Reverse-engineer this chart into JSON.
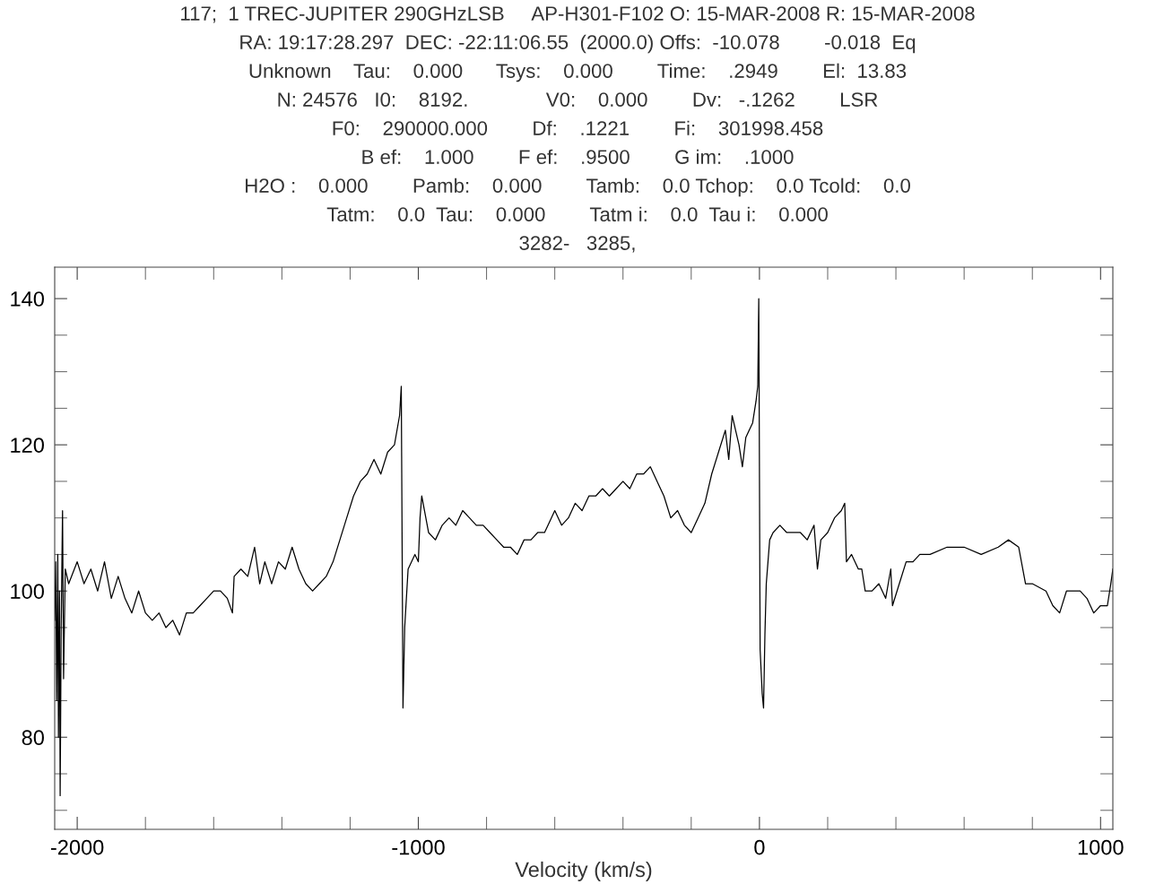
{
  "chart_data": {
    "type": "line",
    "annotations": [
      "117;  1 TREC-JUPITER 290GHzLSB     AP-H301-F102 O: 15-MAR-2008 R: 15-MAR-2008",
      "RA: 19:17:28.297  DEC: -22:11:06.55  (2000.0) Offs:  -10.078        -0.018  Eq",
      "Unknown    Tau:    0.000      Tsys:    0.000        Time:    .2949        El:  13.83",
      "N: 24576   I0:    8192.              V0:    0.000        Dv:   -.1262        LSR",
      "F0:    290000.000        Df:    .1221        Fi:    301998.458",
      "B ef:    1.000        F ef:    .9500        G im:    .1000",
      "H2O :    0.000        Pamb:    0.000        Tamb:    0.0 Tchop:    0.0 Tcold:    0.0",
      "Tatm:    0.0  Tau:    0.000        Tatm i:    0.0  Tau i:    0.000",
      "3282-   3285,"
    ],
    "xlabel": "Velocity (km/s)",
    "xlim": [
      -2066,
      1036
    ],
    "ylim": [
      67.4,
      144.3
    ],
    "xticks": [
      {
        "value": -2000,
        "label": "-2000"
      },
      {
        "value": -1800,
        "label": null
      },
      {
        "value": -1600,
        "label": null
      },
      {
        "value": -1400,
        "label": null
      },
      {
        "value": -1200,
        "label": null
      },
      {
        "value": -1000,
        "label": "-1000"
      },
      {
        "value": -800,
        "label": null
      },
      {
        "value": -600,
        "label": null
      },
      {
        "value": -400,
        "label": null
      },
      {
        "value": -200,
        "label": null
      },
      0,
      {
        "value": 200,
        "label": null
      },
      {
        "value": 400,
        "label": null
      },
      {
        "value": 600,
        "label": null
      },
      {
        "value": 800,
        "label": null
      },
      1000
    ],
    "yticks": [
      {
        "value": 70,
        "label": null
      },
      {
        "value": 75,
        "label": null
      },
      80,
      {
        "value": 85,
        "label": null
      },
      {
        "value": 90,
        "label": null
      },
      {
        "value": 95,
        "label": null
      },
      100,
      {
        "value": 105,
        "label": null
      },
      {
        "value": 110,
        "label": null
      },
      {
        "value": 115,
        "label": null
      },
      120,
      {
        "value": 125,
        "label": null
      },
      {
        "value": 130,
        "label": null
      },
      {
        "value": 135,
        "label": null
      },
      140
    ],
    "grid": false,
    "marker": "none",
    "line_style": "solid",
    "x": [
      -2066,
      -2063,
      -2060,
      -2057,
      -2055,
      -2052,
      -2050,
      -2047,
      -2043,
      -2040,
      -2035,
      -2025,
      -2000,
      -1980,
      -1960,
      -1940,
      -1920,
      -1900,
      -1880,
      -1860,
      -1840,
      -1820,
      -1800,
      -1780,
      -1760,
      -1740,
      -1720,
      -1700,
      -1680,
      -1660,
      -1640,
      -1620,
      -1600,
      -1580,
      -1560,
      -1545,
      -1540,
      -1520,
      -1500,
      -1480,
      -1465,
      -1450,
      -1430,
      -1410,
      -1390,
      -1370,
      -1350,
      -1330,
      -1310,
      -1290,
      -1270,
      -1250,
      -1230,
      -1210,
      -1190,
      -1170,
      -1150,
      -1130,
      -1110,
      -1090,
      -1070,
      -1055,
      -1050,
      -1045,
      -1040,
      -1030,
      -1010,
      -1000,
      -995,
      -990,
      -970,
      -950,
      -930,
      -910,
      -890,
      -870,
      -850,
      -830,
      -810,
      -790,
      -770,
      -750,
      -730,
      -710,
      -690,
      -670,
      -650,
      -630,
      -610,
      -600,
      -580,
      -560,
      -540,
      -520,
      -500,
      -480,
      -460,
      -440,
      -420,
      -400,
      -380,
      -360,
      -340,
      -320,
      -300,
      -280,
      -260,
      -240,
      -220,
      -200,
      -180,
      -160,
      -140,
      -120,
      -100,
      -90,
      -80,
      -70,
      -60,
      -50,
      -40,
      -30,
      -20,
      -10,
      -5,
      -2,
      2,
      8,
      12,
      16,
      20,
      25,
      30,
      40,
      60,
      80,
      100,
      120,
      140,
      160,
      170,
      180,
      200,
      220,
      240,
      250,
      255,
      270,
      290,
      300,
      310,
      330,
      350,
      370,
      385,
      390,
      410,
      430,
      450,
      470,
      500,
      550,
      600,
      650,
      700,
      730,
      760,
      780,
      800,
      840,
      860,
      880,
      900,
      920,
      940,
      960,
      980,
      1000,
      1020,
      1030,
      1036
    ],
    "series": [
      {
        "color": "#000000",
        "values": [
          96,
          104,
          85,
          105,
          80,
          100,
          72,
          95,
          111,
          88,
          103,
          101,
          104,
          101,
          103,
          100,
          104,
          99,
          102,
          99,
          97,
          100,
          97,
          96,
          97,
          95,
          96,
          94,
          97,
          97,
          98,
          99,
          100,
          100,
          99,
          97,
          102,
          103,
          102,
          106,
          101,
          104,
          101,
          104,
          103,
          106,
          103,
          101,
          100,
          101,
          102,
          104,
          107,
          110,
          113,
          115,
          116,
          118,
          116,
          119,
          120,
          124,
          128,
          84,
          95,
          103,
          105,
          104,
          110,
          113,
          108,
          107,
          109,
          110,
          109,
          111,
          110,
          109,
          109,
          108,
          107,
          106,
          106,
          105,
          107,
          107,
          108,
          108,
          110,
          111,
          109,
          110,
          112,
          111,
          113,
          113,
          114,
          113,
          114,
          115,
          114,
          116,
          116,
          117,
          115,
          113,
          110,
          111,
          109,
          108,
          110,
          112,
          116,
          119,
          122,
          118,
          124,
          122,
          120,
          117,
          121,
          122,
          123,
          126,
          128,
          140,
          92,
          86,
          84,
          94,
          101,
          104,
          107,
          108,
          109,
          108,
          108,
          108,
          107,
          109,
          103,
          107,
          108,
          110,
          111,
          112,
          104,
          105,
          103,
          103,
          100,
          100,
          101,
          99,
          103,
          98,
          101,
          104,
          104,
          105,
          105,
          106,
          106,
          105,
          106,
          107,
          106,
          101,
          101,
          100,
          98,
          97,
          100,
          100,
          100,
          99,
          97,
          98,
          98,
          101,
          103
        ]
      }
    ]
  }
}
